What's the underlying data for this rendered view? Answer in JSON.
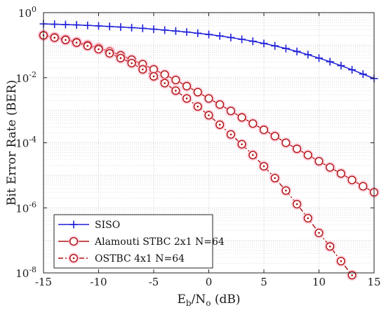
{
  "colors": {
    "siso": "#1f1fd9",
    "alamouti": "#b01010",
    "ostbc": "#b01010",
    "marker_glow": "#ffb0c8",
    "grid": "#c8c8c8",
    "axis": "#222222"
  },
  "chart_data": {
    "type": "line",
    "title": "",
    "xlabel": {
      "base": "E",
      "sub1": "b",
      "mid": "/N",
      "sub2": "o",
      "unit": " (dB)"
    },
    "ylabel": "Bit Error Rate (BER)",
    "xlim": [
      -15,
      15
    ],
    "ylim": [
      1e-08,
      1
    ],
    "yscale": "log",
    "grid": true,
    "legend_position": "bottom-left",
    "x_ticks": [
      -15,
      -10,
      -5,
      0,
      5,
      10,
      15
    ],
    "x_tick_labels": [
      "-15",
      "-10",
      "-5",
      "0",
      "5",
      "10",
      "15"
    ],
    "y_ticks": [
      1,
      0.01,
      0.0001,
      1e-06,
      1e-08
    ],
    "y_tick_labels": [
      {
        "base": "10",
        "exp": "0"
      },
      {
        "base": "10",
        "exp": "-2"
      },
      {
        "base": "10",
        "exp": "-4"
      },
      {
        "base": "10",
        "exp": "-6"
      },
      {
        "base": "10",
        "exp": "-8"
      }
    ],
    "series": [
      {
        "name": "SISO",
        "line": "solid",
        "marker": "plus",
        "x": [
          -15,
          -14,
          -13,
          -12,
          -11,
          -10,
          -9,
          -8,
          -7,
          -6,
          -5,
          -4,
          -3,
          -2,
          -1,
          0,
          1,
          2,
          3,
          4,
          5,
          6,
          7,
          8,
          9,
          10,
          11,
          12,
          13,
          14,
          15
        ],
        "y": [
          0.45,
          0.44,
          0.43,
          0.42,
          0.405,
          0.39,
          0.375,
          0.36,
          0.345,
          0.33,
          0.31,
          0.29,
          0.272,
          0.253,
          0.233,
          0.213,
          0.192,
          0.172,
          0.151,
          0.132,
          0.113,
          0.095,
          0.079,
          0.064,
          0.051,
          0.04,
          0.031,
          0.0235,
          0.0175,
          0.0129,
          0.0094
        ]
      },
      {
        "name": "Alamouti STBC 2x1 N=64",
        "line": "solid",
        "marker": "circle",
        "x": [
          -15,
          -14,
          -13,
          -12,
          -11,
          -10,
          -9,
          -8,
          -7,
          -6,
          -5,
          -4,
          -3,
          -2,
          -1,
          0,
          1,
          2,
          3,
          4,
          5,
          6,
          7,
          8,
          9,
          10,
          11,
          12,
          13,
          14,
          15
        ],
        "y": [
          0.2,
          0.175,
          0.15,
          0.125,
          0.102,
          0.082,
          0.064,
          0.049,
          0.036,
          0.026,
          0.018,
          0.0125,
          0.0085,
          0.0055,
          0.0036,
          0.0023,
          0.0015,
          0.00095,
          0.0006,
          0.00039,
          0.00025,
          0.00016,
          0.0001,
          6.5e-05,
          4.2e-05,
          2.7e-05,
          1.75e-05,
          1.13e-05,
          7.2e-06,
          4.6e-06,
          3e-06
        ]
      },
      {
        "name": "OSTBC 4x1 N=64",
        "line": "dashdot",
        "marker": "circle-dot",
        "x": [
          -15,
          -14,
          -13,
          -12,
          -11,
          -10,
          -9,
          -8,
          -7,
          -6,
          -5,
          -4,
          -3,
          -2,
          -1,
          0,
          1,
          2,
          3,
          4,
          5,
          6,
          7,
          8,
          9,
          10,
          11,
          12,
          13
        ],
        "y": [
          0.2,
          0.17,
          0.145,
          0.12,
          0.095,
          0.075,
          0.056,
          0.04,
          0.028,
          0.018,
          0.011,
          0.0068,
          0.004,
          0.0023,
          0.0013,
          0.0007,
          0.00036,
          0.00018,
          9e-05,
          4.2e-05,
          1.9e-05,
          8.2e-06,
          3.4e-06,
          1.3e-06,
          4.8e-07,
          1.7e-07,
          6.5e-08,
          2.3e-08,
          8.5e-09
        ]
      }
    ]
  }
}
